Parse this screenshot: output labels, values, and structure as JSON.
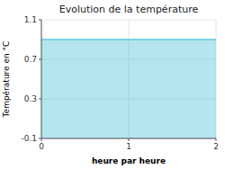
{
  "chart_data": {
    "type": "area",
    "title": "Evolution de la température",
    "xlabel": "heure par heure",
    "ylabel": "Température en °C",
    "x": [
      0,
      2
    ],
    "values": [
      0.9,
      0.9
    ],
    "color": "#5bc8dc",
    "xlim": [
      0,
      2
    ],
    "ylim": [
      -0.1,
      1.1
    ],
    "xticks": [
      0,
      1,
      2
    ],
    "yticks": [
      -0.1,
      0.3,
      0.7,
      1.1
    ],
    "grid": true
  }
}
